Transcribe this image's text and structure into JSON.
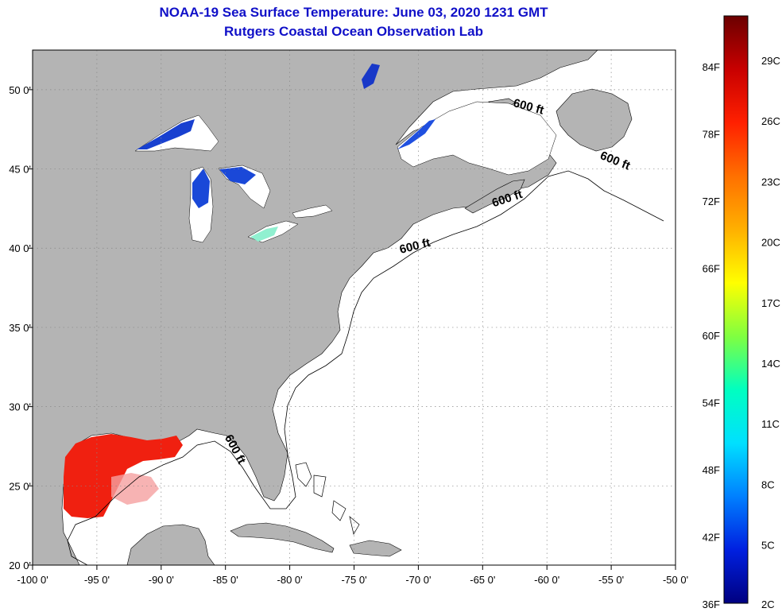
{
  "header": {
    "title": "NOAA-19 Sea Surface Temperature:  June 03, 2020 1231 GMT",
    "subtitle": "Rutgers Coastal Ocean Observation Lab"
  },
  "map": {
    "lon_range": [
      -100,
      -50
    ],
    "lat_range": [
      20,
      52.5
    ],
    "lon_ticks": [
      {
        "value": -100,
        "label": "-100 0'"
      },
      {
        "value": -95,
        "label": "-95 0'"
      },
      {
        "value": -90,
        "label": "-90 0'"
      },
      {
        "value": -85,
        "label": "-85 0'"
      },
      {
        "value": -80,
        "label": "-80 0'"
      },
      {
        "value": -75,
        "label": "-75 0'"
      },
      {
        "value": -70,
        "label": "-70 0'"
      },
      {
        "value": -65,
        "label": "-65 0'"
      },
      {
        "value": -60,
        "label": "-60 0'"
      },
      {
        "value": -55,
        "label": "-55 0'"
      },
      {
        "value": -50,
        "label": "-50 0'"
      }
    ],
    "lat_ticks": [
      {
        "value": 50,
        "label": "50 0'"
      },
      {
        "value": 45,
        "label": "45 0'"
      },
      {
        "value": 40,
        "label": "40 0'"
      },
      {
        "value": 35,
        "label": "35 0'"
      },
      {
        "value": 30,
        "label": "30 0'"
      },
      {
        "value": 25,
        "label": "25 0'"
      },
      {
        "value": 20,
        "label": "20 0'"
      }
    ],
    "contour_labels": [
      {
        "text": "600 ft",
        "lon": -61.5,
        "lat": 48.7,
        "rotate": 15
      },
      {
        "text": "600 ft",
        "lon": -54.8,
        "lat": 45.3,
        "rotate": 22
      },
      {
        "text": "600 ft",
        "lon": -63.0,
        "lat": 42.9,
        "rotate": -18
      },
      {
        "text": "600 ft",
        "lon": -70.2,
        "lat": 39.9,
        "rotate": -14
      },
      {
        "text": "600 ft",
        "lon": -84.5,
        "lat": 27.2,
        "rotate": 62
      }
    ]
  },
  "colorbar": {
    "fahrenheit_labels": [
      "84F",
      "78F",
      "72F",
      "66F",
      "60F",
      "54F",
      "48F",
      "42F",
      "36F"
    ],
    "celsius_labels": [
      "29C",
      "26C",
      "23C",
      "20C",
      "17C",
      "14C",
      "11C",
      "8C",
      "5C",
      "2C"
    ],
    "colors": [
      "#6b0000",
      "#c80000",
      "#ff2000",
      "#ff7000",
      "#ffb000",
      "#ffff00",
      "#80ff40",
      "#00ffc0",
      "#00e0ff",
      "#0080ff",
      "#0020e0",
      "#000080"
    ]
  },
  "colors": {
    "land": "#b4b4b4",
    "title": "#1010c8",
    "lake": "#1840d0",
    "warm_sst": "#f02010"
  }
}
